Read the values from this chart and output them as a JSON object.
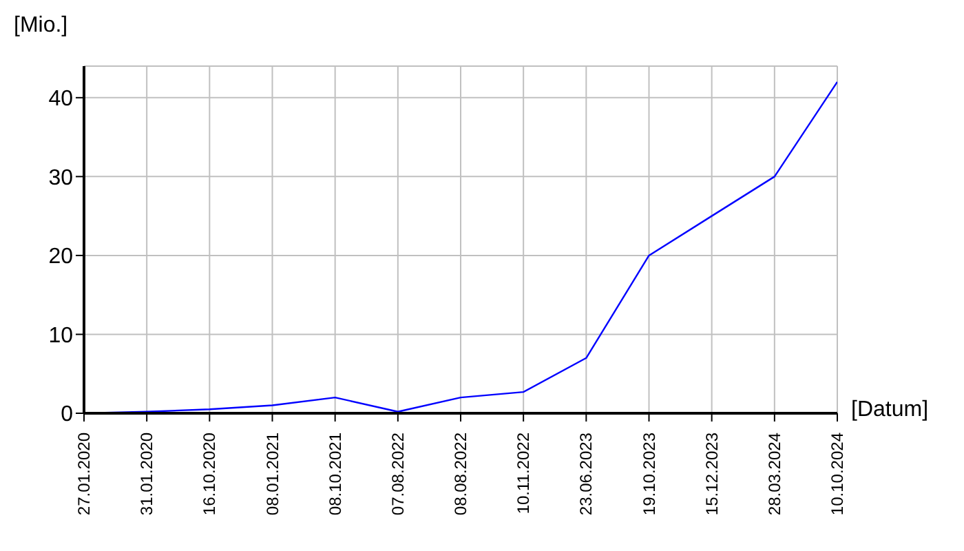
{
  "chart_data": {
    "type": "line",
    "ylabel": "[Mio.]",
    "xlabel": "[Datum]",
    "categories": [
      "27.01.2020",
      "31.01.2020",
      "16.10.2020",
      "08.01.2021",
      "08.10.2021",
      "07.08.2022",
      "08.08.2022",
      "10.11.2022",
      "23.06.2023",
      "19.10.2023",
      "15.12.2023",
      "28.03.2024",
      "10.10.2024"
    ],
    "series": [
      {
        "color": "#0000ff",
        "values": [
          0,
          0.2,
          0.5,
          1,
          2,
          0.2,
          2,
          2.7,
          7,
          20,
          25,
          30,
          42
        ]
      }
    ],
    "ylim": [
      0,
      44
    ],
    "yticks": [
      0,
      10,
      20,
      30,
      40
    ],
    "grid": true,
    "legend": false,
    "marker": "none",
    "line_style": "solid"
  }
}
